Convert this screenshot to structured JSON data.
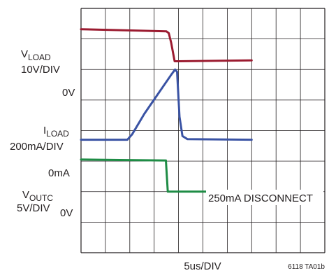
{
  "chart_data": {
    "type": "line",
    "title": "",
    "xlabel": "5us/DIV",
    "figure_id": "6118 TA01b",
    "annotation": "250mA DISCONNECT",
    "grid": true,
    "divisions": {
      "x": 10,
      "y": 8
    },
    "x_unit": "us",
    "x_range": [
      0,
      50
    ],
    "channel_labels": [
      {
        "name": "V",
        "sub": "LOAD",
        "scale": "10V/DIV",
        "zero": "0V"
      },
      {
        "name": "I",
        "sub": "LOAD",
        "scale": "200mA/DIV",
        "zero": "0mA"
      },
      {
        "name": "V",
        "sub": "OUTC",
        "scale": "5V/DIV",
        "zero": "0V"
      }
    ],
    "series": [
      {
        "color": "#9b1b30",
        "zero_div": 6.27,
        "points_div": [
          [
            0,
            1.05
          ],
          [
            17.5,
            0.98
          ],
          [
            18.0,
            0.92
          ],
          [
            18.5,
            0.6
          ],
          [
            19.2,
            0.0
          ],
          [
            20,
            0.0
          ],
          [
            35,
            0.03
          ]
        ]
      },
      {
        "color": "#3a53a4",
        "zero_div": 3.7,
        "points_div": [
          [
            0,
            0.0
          ],
          [
            9.5,
            0.0
          ],
          [
            10.5,
            0.18
          ],
          [
            13,
            0.85
          ],
          [
            16,
            1.55
          ],
          [
            18.6,
            2.15
          ],
          [
            19.3,
            2.3
          ],
          [
            19.7,
            2.22
          ],
          [
            20.2,
            0.75
          ],
          [
            20.8,
            0.12
          ],
          [
            21.8,
            0.02
          ],
          [
            35,
            0.0
          ]
        ]
      },
      {
        "color": "#1e8c45",
        "zero_div": 2.0,
        "points_div": [
          [
            0,
            1.05
          ],
          [
            17.4,
            1.02
          ],
          [
            17.8,
            0.0
          ],
          [
            35,
            0.0
          ]
        ]
      }
    ]
  }
}
